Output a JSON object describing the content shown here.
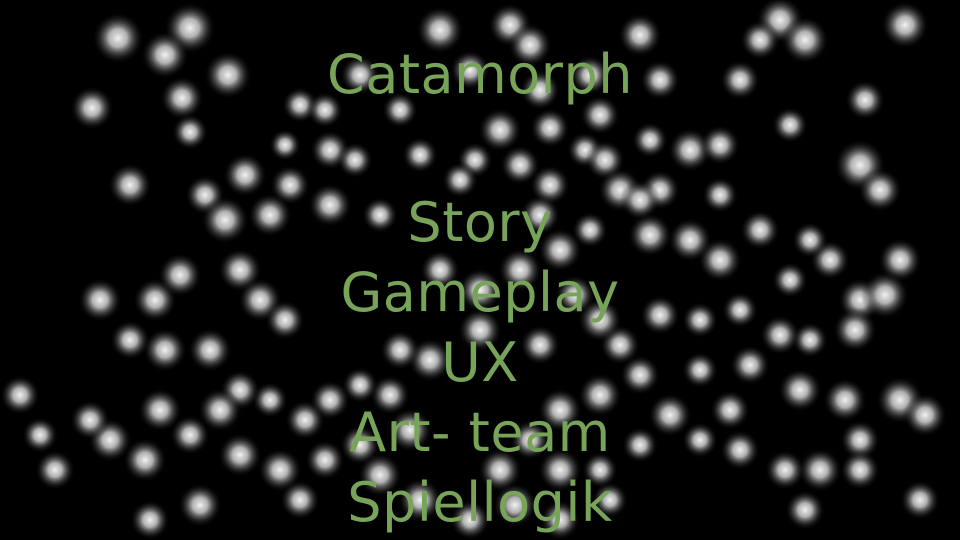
{
  "colors": {
    "background": "#000000",
    "text": "#78a45a",
    "bokeh_core": "#ffffff"
  },
  "slide": {
    "title": "Catamorph",
    "items": [
      "Story",
      "Gameplay",
      "UX",
      "Art- team",
      "Spiellogik"
    ]
  }
}
